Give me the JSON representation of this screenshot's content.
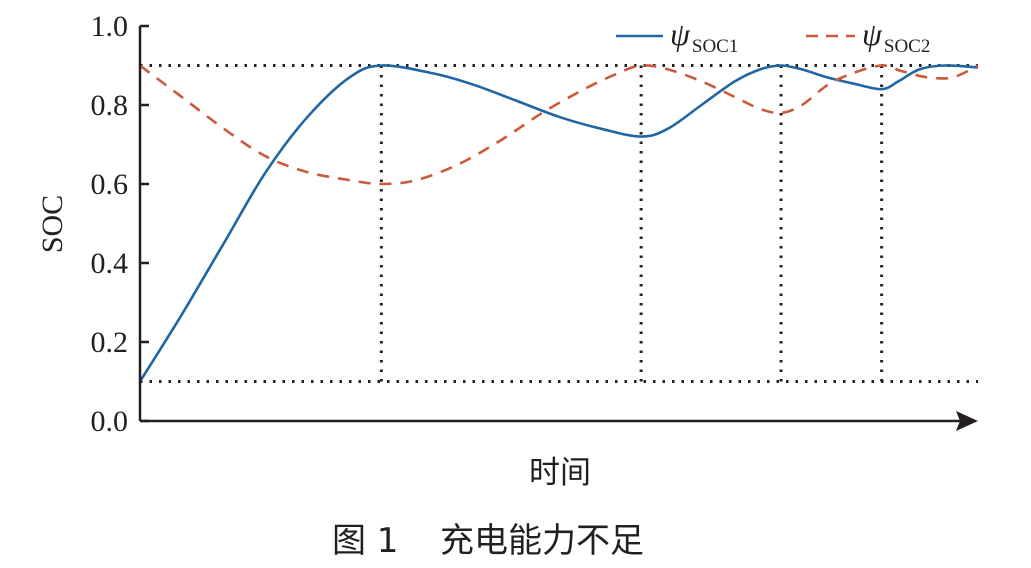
{
  "caption": {
    "number": "图 1",
    "text": "充电能力不足"
  },
  "chart_data": {
    "type": "line",
    "title": "",
    "xlabel": "时间",
    "ylabel": "SOC",
    "x_ticks_shown": false,
    "xlim": [
      0,
      100
    ],
    "ylim": [
      0,
      1.0
    ],
    "y_ticks": [
      "0.0",
      "0.2",
      "0.4",
      "0.6",
      "0.8",
      "1.0"
    ],
    "grid": false,
    "legend_position": "top-right",
    "reference_lines": {
      "horizontal": [
        0.9,
        0.1
      ],
      "vertical_x": [
        28.8,
        59.8,
        76.5,
        88.5
      ]
    },
    "series": [
      {
        "name": "ψ",
        "subscript": "SOC1",
        "style": "solid",
        "color": "#2166a4",
        "x": [
          0,
          5,
          10,
          15,
          20,
          25,
          28.8,
          35,
          40,
          45,
          50,
          55,
          59.8,
          63,
          67,
          71,
          74,
          76.5,
          79,
          82,
          85,
          88.5,
          90.5,
          93,
          96,
          100
        ],
        "y": [
          0.1,
          0.27,
          0.45,
          0.63,
          0.77,
          0.87,
          0.9,
          0.88,
          0.85,
          0.81,
          0.77,
          0.74,
          0.72,
          0.74,
          0.8,
          0.86,
          0.89,
          0.9,
          0.89,
          0.87,
          0.855,
          0.84,
          0.86,
          0.89,
          0.9,
          0.895
        ]
      },
      {
        "name": "ψ",
        "subscript": "SOC2",
        "style": "dashed",
        "color": "#cc5a3a",
        "x": [
          0,
          5,
          10,
          15,
          20,
          25,
          28.8,
          33,
          38,
          43,
          48,
          53,
          57,
          59.8,
          63,
          67,
          71,
          74,
          76.5,
          79,
          82,
          85,
          88.5,
          91,
          94,
          97,
          100
        ],
        "y": [
          0.9,
          0.82,
          0.74,
          0.67,
          0.63,
          0.61,
          0.6,
          0.61,
          0.65,
          0.71,
          0.78,
          0.84,
          0.88,
          0.9,
          0.89,
          0.86,
          0.82,
          0.79,
          0.78,
          0.8,
          0.85,
          0.88,
          0.9,
          0.885,
          0.87,
          0.87,
          0.9
        ]
      }
    ]
  }
}
